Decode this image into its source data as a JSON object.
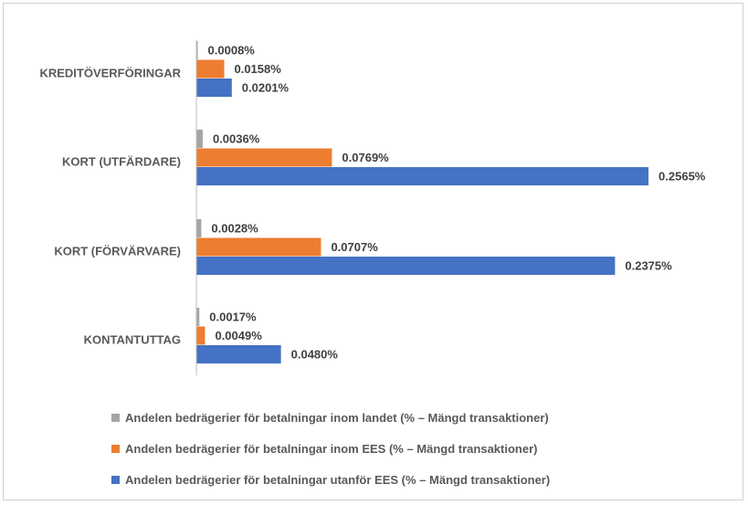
{
  "chart_data": {
    "type": "bar",
    "orientation": "horizontal",
    "categories": [
      "KREDITÖVERFÖRINGAR",
      "KORT (UTFÄRDARE)",
      "KORT (FÖRVÄRVARE)",
      "KONTANTUTTAG"
    ],
    "series": [
      {
        "name": "Andelen bedrägerier för betalningar inom landet (% – Mängd transaktioner)",
        "color": "#a5a5a5",
        "values": [
          0.0008,
          0.0036,
          0.0028,
          0.0017
        ],
        "labels": [
          "0.0008%",
          "0.0036%",
          "0.0028%",
          "0.0017%"
        ]
      },
      {
        "name": "Andelen bedrägerier för betalningar inom EES (% – Mängd transaktioner)",
        "color": "#ed7d31",
        "values": [
          0.0158,
          0.0769,
          0.0707,
          0.0049
        ],
        "labels": [
          "0.0158%",
          "0.0769%",
          "0.0707%",
          "0.0049%"
        ]
      },
      {
        "name": "Andelen bedrägerier för betalningar utanför EES (% – Mängd transaktioner)",
        "color": "#4472c4",
        "values": [
          0.0201,
          0.2565,
          0.2375,
          0.048
        ],
        "labels": [
          "0.0201%",
          "0.2565%",
          "0.2375%",
          "0.0480%"
        ]
      }
    ],
    "xlim": [
      0,
      0.3
    ],
    "grid": false,
    "legend_position": "bottom",
    "axis_color": "#bfbfbf"
  }
}
